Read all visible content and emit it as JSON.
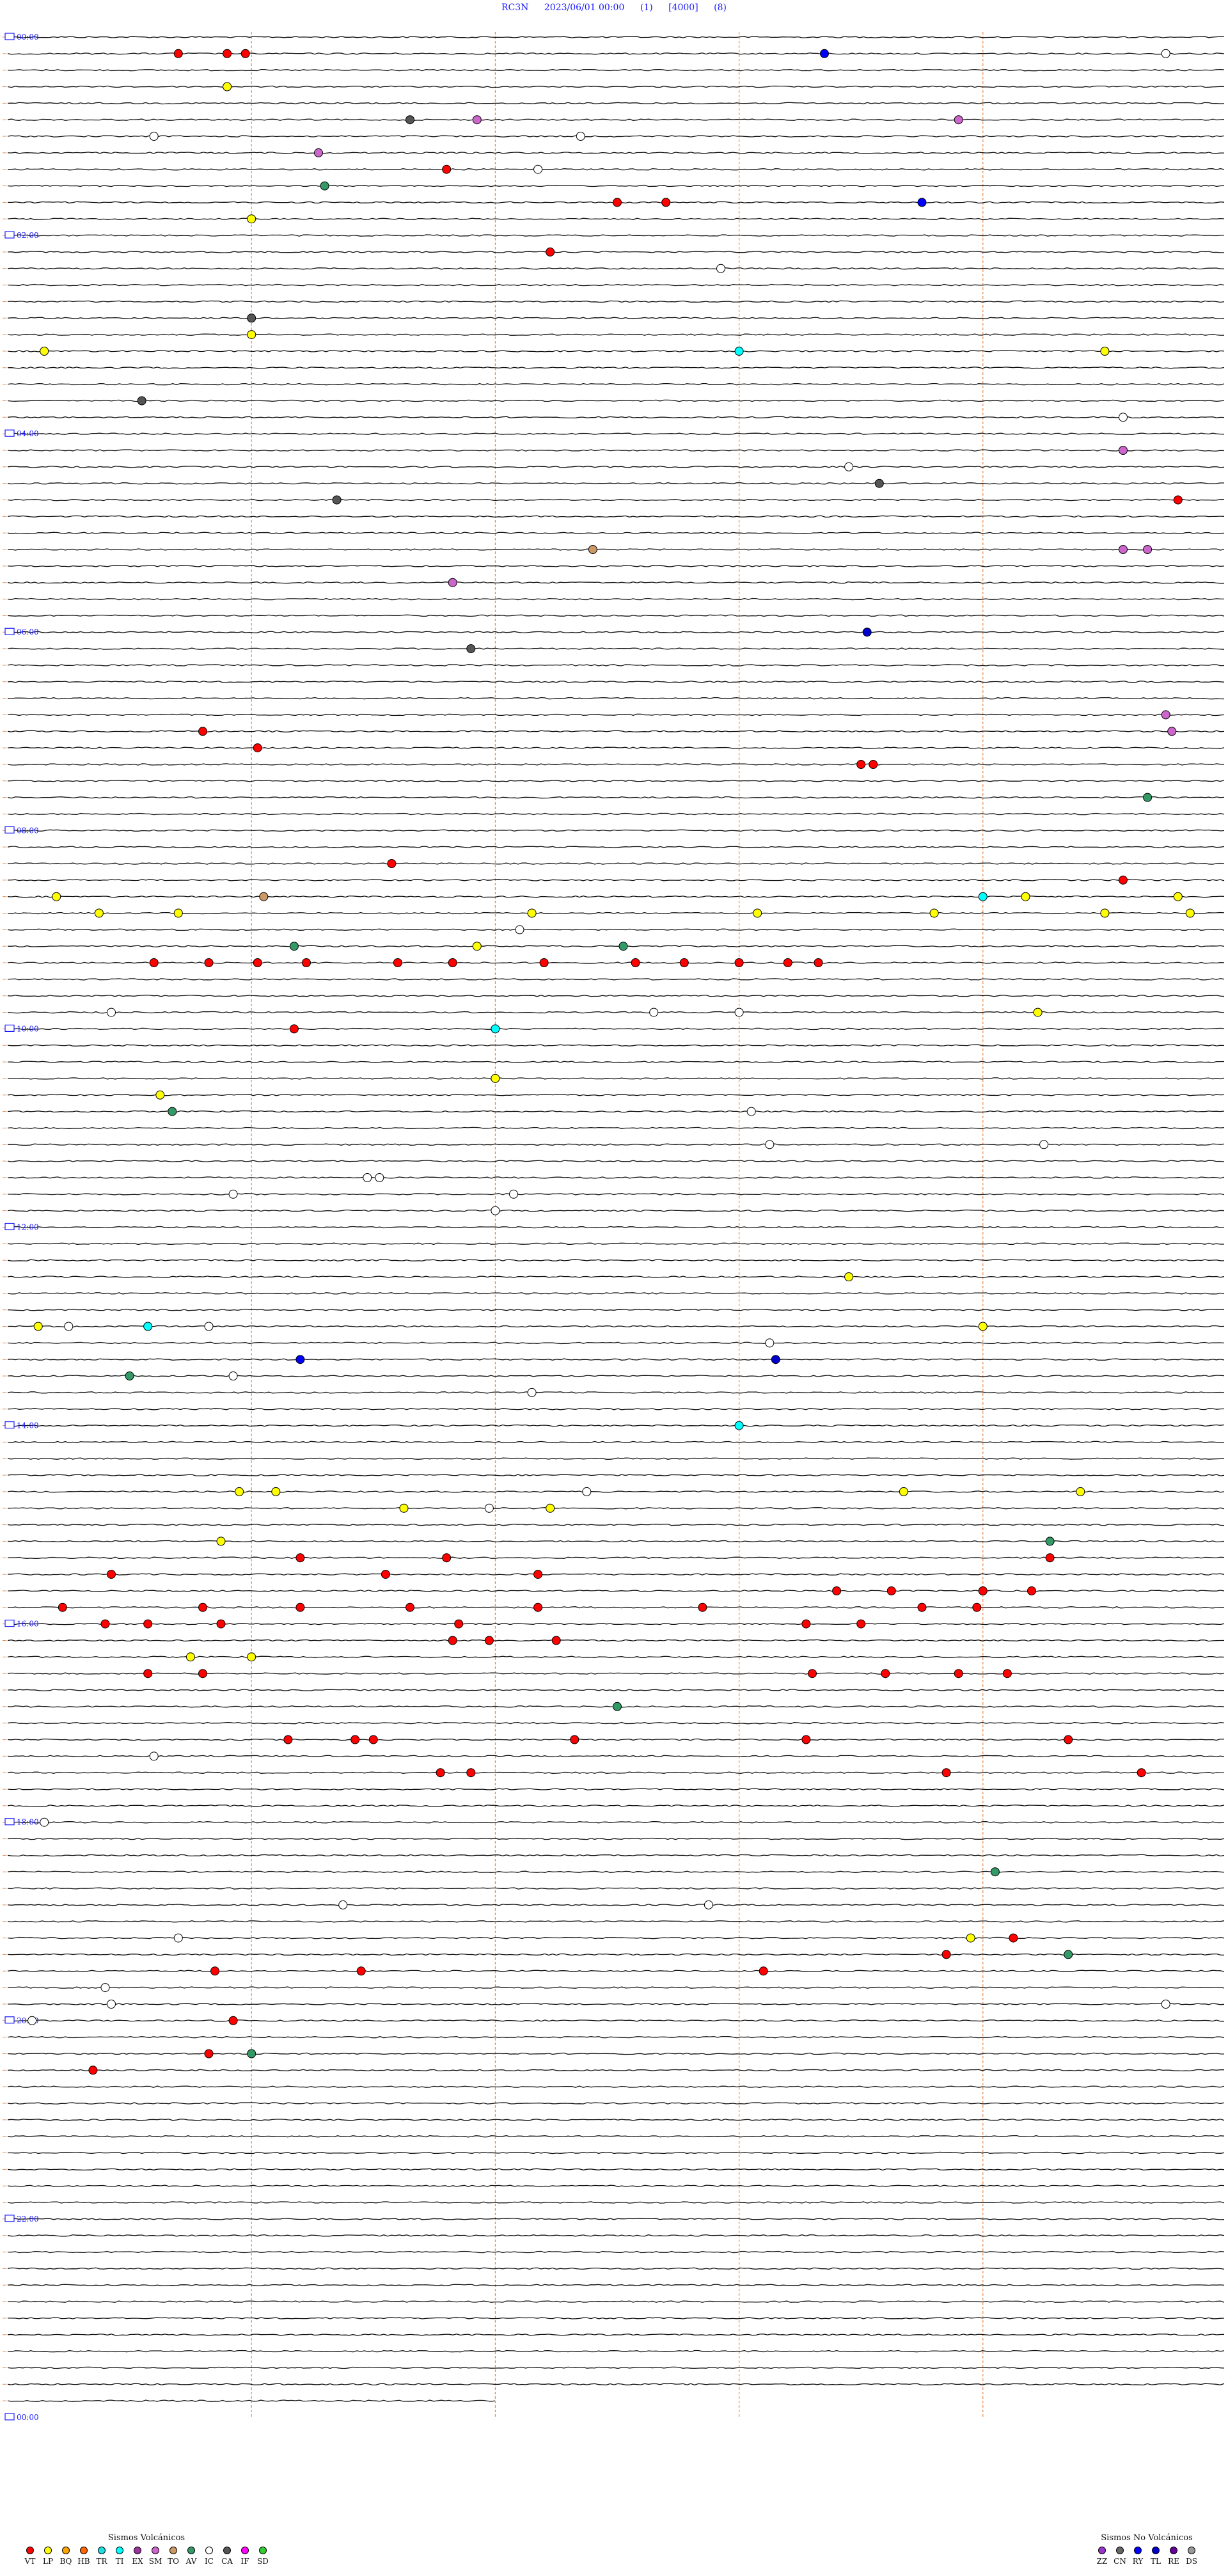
{
  "header": {
    "station": "RC3N",
    "datetime": "2023/06/01 00:00",
    "channel": "(1)",
    "gain": "[4000]",
    "filter": "(8)"
  },
  "chart_data": {
    "type": "helicorder",
    "title": "",
    "rows": 144,
    "minutes_per_row": 10,
    "time_labels": [
      "00:00",
      "02:00",
      "04:00",
      "06:00",
      "08:00",
      "10:00",
      "12:00",
      "14:00",
      "16:00",
      "18:00",
      "20:00",
      "22:00",
      "00:00"
    ],
    "event_markers_per_row": [
      {
        "row": 1,
        "events": [
          [
            0.14,
            "VT"
          ],
          [
            0.18,
            "VT"
          ],
          [
            0.195,
            "VT"
          ],
          [
            0.67,
            "RY"
          ],
          [
            0.95,
            "IC"
          ]
        ]
      },
      {
        "row": 3,
        "events": [
          [
            0.18,
            "LP"
          ]
        ]
      },
      {
        "row": 5,
        "events": [
          [
            0.33,
            "CA"
          ],
          [
            0.385,
            "SM"
          ],
          [
            0.78,
            "SM"
          ]
        ]
      },
      {
        "row": 6,
        "events": [
          [
            0.12,
            "IC"
          ],
          [
            0.47,
            "IC"
          ]
        ]
      },
      {
        "row": 7,
        "events": [
          [
            0.255,
            "SM"
          ]
        ]
      },
      {
        "row": 8,
        "events": [
          [
            0.36,
            "VT"
          ],
          [
            0.435,
            "IC"
          ]
        ]
      },
      {
        "row": 9,
        "events": [
          [
            0.26,
            "AV"
          ]
        ]
      },
      {
        "row": 10,
        "events": [
          [
            0.5,
            "VT"
          ],
          [
            0.54,
            "VT"
          ],
          [
            0.75,
            "RY"
          ]
        ]
      },
      {
        "row": 11,
        "events": [
          [
            0.2,
            "LP"
          ]
        ]
      },
      {
        "row": 13,
        "events": [
          [
            0.445,
            "VT"
          ]
        ]
      },
      {
        "row": 14,
        "events": [
          [
            0.585,
            "IC"
          ]
        ]
      },
      {
        "row": 17,
        "events": [
          [
            0.2,
            "CA"
          ]
        ]
      },
      {
        "row": 18,
        "events": [
          [
            0.2,
            "LP"
          ]
        ]
      },
      {
        "row": 19,
        "events": [
          [
            0.03,
            "LP"
          ],
          [
            0.6,
            "TI"
          ],
          [
            0.9,
            "LP"
          ]
        ]
      },
      {
        "row": 22,
        "events": [
          [
            0.11,
            "CA"
          ]
        ]
      },
      {
        "row": 23,
        "events": [
          [
            0.915,
            "IC"
          ]
        ]
      },
      {
        "row": 25,
        "events": [
          [
            0.915,
            "SM"
          ]
        ]
      },
      {
        "row": 26,
        "events": [
          [
            0.69,
            "IC"
          ]
        ]
      },
      {
        "row": 27,
        "events": [
          [
            0.715,
            "CA"
          ]
        ]
      },
      {
        "row": 28,
        "events": [
          [
            0.27,
            "CA"
          ],
          [
            0.96,
            "VT"
          ]
        ]
      },
      {
        "row": 31,
        "events": [
          [
            0.48,
            "TO"
          ],
          [
            0.915,
            "SM"
          ],
          [
            0.935,
            "SM"
          ]
        ]
      },
      {
        "row": 33,
        "events": [
          [
            0.365,
            "SM"
          ]
        ]
      },
      {
        "row": 36,
        "events": [
          [
            0.705,
            "TL"
          ]
        ]
      },
      {
        "row": 37,
        "events": [
          [
            0.38,
            "CA"
          ]
        ]
      },
      {
        "row": 41,
        "events": [
          [
            0.95,
            "SM"
          ]
        ]
      },
      {
        "row": 42,
        "events": [
          [
            0.16,
            "VT"
          ],
          [
            0.955,
            "SM"
          ]
        ]
      },
      {
        "row": 43,
        "events": [
          [
            0.205,
            "VT"
          ]
        ]
      },
      {
        "row": 44,
        "events": [
          [
            0.7,
            "VT"
          ],
          [
            0.71,
            "VT"
          ]
        ]
      },
      {
        "row": 46,
        "events": [
          [
            0.935,
            "AV"
          ]
        ]
      },
      {
        "row": 50,
        "events": [
          [
            0.315,
            "VT"
          ]
        ]
      },
      {
        "row": 51,
        "events": [
          [
            0.915,
            "VT"
          ]
        ]
      },
      {
        "row": 52,
        "events": [
          [
            0.04,
            "LP"
          ],
          [
            0.21,
            "TO"
          ],
          [
            0.8,
            "TI"
          ],
          [
            0.835,
            "LP"
          ],
          [
            0.96,
            "LP"
          ]
        ]
      },
      {
        "row": 53,
        "events": [
          [
            0.075,
            "LP"
          ],
          [
            0.14,
            "LP"
          ],
          [
            0.43,
            "LP"
          ],
          [
            0.615,
            "LP"
          ],
          [
            0.76,
            "LP"
          ],
          [
            0.9,
            "LP"
          ],
          [
            0.97,
            "LP"
          ]
        ]
      },
      {
        "row": 54,
        "events": [
          [
            0.42,
            "IC"
          ]
        ]
      },
      {
        "row": 55,
        "events": [
          [
            0.235,
            "AV"
          ],
          [
            0.385,
            "LP"
          ],
          [
            0.505,
            "AV"
          ]
        ]
      },
      {
        "row": 56,
        "events": [
          [
            0.12,
            "VT"
          ],
          [
            0.165,
            "VT"
          ],
          [
            0.205,
            "VT"
          ],
          [
            0.245,
            "VT"
          ],
          [
            0.32,
            "VT"
          ],
          [
            0.365,
            "VT"
          ],
          [
            0.44,
            "VT"
          ],
          [
            0.515,
            "VT"
          ],
          [
            0.555,
            "VT"
          ],
          [
            0.6,
            "VT"
          ],
          [
            0.64,
            "VT"
          ],
          [
            0.665,
            "VT"
          ]
        ]
      },
      {
        "row": 59,
        "events": [
          [
            0.085,
            "IC"
          ],
          [
            0.53,
            "IC"
          ],
          [
            0.6,
            "IC"
          ],
          [
            0.845,
            "LP"
          ]
        ]
      },
      {
        "row": 60,
        "events": [
          [
            0.235,
            "VT"
          ],
          [
            0.4,
            "TI"
          ]
        ]
      },
      {
        "row": 63,
        "events": [
          [
            0.4,
            "LP"
          ]
        ]
      },
      {
        "row": 64,
        "events": [
          [
            0.125,
            "LP"
          ]
        ]
      },
      {
        "row": 65,
        "events": [
          [
            0.135,
            "AV"
          ],
          [
            0.61,
            "IC"
          ]
        ]
      },
      {
        "row": 67,
        "events": [
          [
            0.625,
            "IC"
          ],
          [
            0.85,
            "IC"
          ]
        ]
      },
      {
        "row": 69,
        "events": [
          [
            0.295,
            "IC"
          ],
          [
            0.305,
            "IC"
          ]
        ]
      },
      {
        "row": 70,
        "events": [
          [
            0.415,
            "IC"
          ],
          [
            0.185,
            "IC"
          ]
        ]
      },
      {
        "row": 71,
        "events": [
          [
            0.4,
            "IC"
          ]
        ]
      },
      {
        "row": 75,
        "events": [
          [
            0.69,
            "LP"
          ]
        ]
      },
      {
        "row": 78,
        "events": [
          [
            0.025,
            "LP"
          ],
          [
            0.05,
            "IC"
          ],
          [
            0.115,
            "TI"
          ],
          [
            0.165,
            "IC"
          ],
          [
            0.8,
            "LP"
          ]
        ]
      },
      {
        "row": 79,
        "events": [
          [
            0.625,
            "IC"
          ]
        ]
      },
      {
        "row": 80,
        "events": [
          [
            0.24,
            "RY"
          ],
          [
            0.63,
            "TL"
          ]
        ]
      },
      {
        "row": 81,
        "events": [
          [
            0.1,
            "AV"
          ],
          [
            0.185,
            "IC"
          ]
        ]
      },
      {
        "row": 82,
        "events": [
          [
            0.43,
            "IC"
          ]
        ]
      },
      {
        "row": 84,
        "events": [
          [
            0.6,
            "TI"
          ]
        ]
      },
      {
        "row": 88,
        "events": [
          [
            0.19,
            "LP"
          ],
          [
            0.22,
            "LP"
          ],
          [
            0.475,
            "IC"
          ],
          [
            0.735,
            "LP"
          ],
          [
            0.88,
            "LP"
          ]
        ]
      },
      {
        "row": 89,
        "events": [
          [
            0.325,
            "LP"
          ],
          [
            0.395,
            "IC"
          ],
          [
            0.445,
            "LP"
          ]
        ]
      },
      {
        "row": 91,
        "events": [
          [
            0.175,
            "LP"
          ],
          [
            0.855,
            "AV"
          ]
        ]
      },
      {
        "row": 92,
        "events": [
          [
            0.24,
            "VT"
          ],
          [
            0.36,
            "VT"
          ],
          [
            0.855,
            "VT"
          ]
        ]
      },
      {
        "row": 93,
        "events": [
          [
            0.085,
            "VT"
          ],
          [
            0.31,
            "VT"
          ],
          [
            0.435,
            "VT"
          ]
        ]
      },
      {
        "row": 94,
        "events": [
          [
            0.68,
            "VT"
          ],
          [
            0.725,
            "VT"
          ],
          [
            0.8,
            "VT"
          ],
          [
            0.84,
            "VT"
          ]
        ]
      },
      {
        "row": 95,
        "events": [
          [
            0.045,
            "VT"
          ],
          [
            0.16,
            "VT"
          ],
          [
            0.24,
            "VT"
          ],
          [
            0.33,
            "VT"
          ],
          [
            0.435,
            "VT"
          ],
          [
            0.57,
            "VT"
          ],
          [
            0.75,
            "VT"
          ],
          [
            0.795,
            "VT"
          ]
        ]
      },
      {
        "row": 96,
        "events": [
          [
            0.08,
            "VT"
          ],
          [
            0.115,
            "VT"
          ],
          [
            0.175,
            "VT"
          ],
          [
            0.37,
            "VT"
          ],
          [
            0.655,
            "VT"
          ],
          [
            0.7,
            "VT"
          ]
        ]
      },
      {
        "row": 97,
        "events": [
          [
            0.365,
            "VT"
          ],
          [
            0.395,
            "VT"
          ],
          [
            0.45,
            "VT"
          ]
        ]
      },
      {
        "row": 98,
        "events": [
          [
            0.15,
            "LP"
          ],
          [
            0.2,
            "LP"
          ]
        ]
      },
      {
        "row": 99,
        "events": [
          [
            0.115,
            "VT"
          ],
          [
            0.16,
            "VT"
          ],
          [
            0.66,
            "VT"
          ],
          [
            0.72,
            "VT"
          ],
          [
            0.78,
            "VT"
          ],
          [
            0.82,
            "VT"
          ]
        ]
      },
      {
        "row": 101,
        "events": [
          [
            0.5,
            "AV"
          ]
        ]
      },
      {
        "row": 103,
        "events": [
          [
            0.23,
            "VT"
          ],
          [
            0.285,
            "VT"
          ],
          [
            0.3,
            "VT"
          ],
          [
            0.465,
            "VT"
          ],
          [
            0.655,
            "VT"
          ],
          [
            0.87,
            "VT"
          ]
        ]
      },
      {
        "row": 104,
        "events": [
          [
            0.12,
            "IC"
          ]
        ]
      },
      {
        "row": 105,
        "events": [
          [
            0.355,
            "VT"
          ],
          [
            0.38,
            "VT"
          ],
          [
            0.77,
            "VT"
          ],
          [
            0.93,
            "VT"
          ]
        ]
      },
      {
        "row": 108,
        "events": [
          [
            0.03,
            "IC"
          ]
        ]
      },
      {
        "row": 111,
        "events": [
          [
            0.81,
            "AV"
          ]
        ]
      },
      {
        "row": 113,
        "events": [
          [
            0.275,
            "IC"
          ],
          [
            0.575,
            "IC"
          ]
        ]
      },
      {
        "row": 115,
        "events": [
          [
            0.14,
            "IC"
          ],
          [
            0.79,
            "LP"
          ],
          [
            0.825,
            "VT"
          ]
        ]
      },
      {
        "row": 116,
        "events": [
          [
            0.77,
            "VT"
          ],
          [
            0.87,
            "AV"
          ]
        ]
      },
      {
        "row": 117,
        "events": [
          [
            0.17,
            "VT"
          ],
          [
            0.29,
            "VT"
          ],
          [
            0.62,
            "VT"
          ]
        ]
      },
      {
        "row": 118,
        "events": [
          [
            0.08,
            "IC"
          ]
        ]
      },
      {
        "row": 119,
        "events": [
          [
            0.085,
            "IC"
          ],
          [
            0.95,
            "IC"
          ]
        ]
      },
      {
        "row": 120,
        "events": [
          [
            0.02,
            "IC"
          ],
          [
            0.185,
            "VT"
          ]
        ]
      },
      {
        "row": 122,
        "events": [
          [
            0.165,
            "VT"
          ],
          [
            0.2,
            "AV"
          ]
        ]
      },
      {
        "row": 123,
        "events": [
          [
            0.07,
            "VT"
          ]
        ]
      }
    ]
  },
  "legend_volcanic": {
    "title": "Sismos Volcánicos",
    "items": [
      {
        "code": "VT",
        "color": "#ff0000"
      },
      {
        "code": "LP",
        "color": "#ffff00"
      },
      {
        "code": "BQ",
        "color": "#ffa500"
      },
      {
        "code": "HB",
        "color": "#ff6600"
      },
      {
        "code": "TR",
        "color": "#22dddd"
      },
      {
        "code": "TI",
        "color": "#00ffff"
      },
      {
        "code": "EX",
        "color": "#993399"
      },
      {
        "code": "SM",
        "color": "#cc66cc"
      },
      {
        "code": "TO",
        "color": "#cc9966"
      },
      {
        "code": "AV",
        "color": "#339966"
      },
      {
        "code": "IC",
        "color": "#ffffff"
      },
      {
        "code": "CA",
        "color": "#555555"
      },
      {
        "code": "IF",
        "color": "#ff00ff"
      },
      {
        "code": "SD",
        "color": "#33cc33"
      }
    ]
  },
  "legend_nonvolcanic": {
    "title": "Sismos No Volcánicos",
    "items": [
      {
        "code": "ZZ",
        "color": "#9933cc"
      },
      {
        "code": "CN",
        "color": "#666666"
      },
      {
        "code": "RY",
        "color": "#0000ff"
      },
      {
        "code": "TL",
        "color": "#0000cc"
      },
      {
        "code": "RE",
        "color": "#660099"
      },
      {
        "code": "DS",
        "color": "#999999"
      }
    ]
  }
}
